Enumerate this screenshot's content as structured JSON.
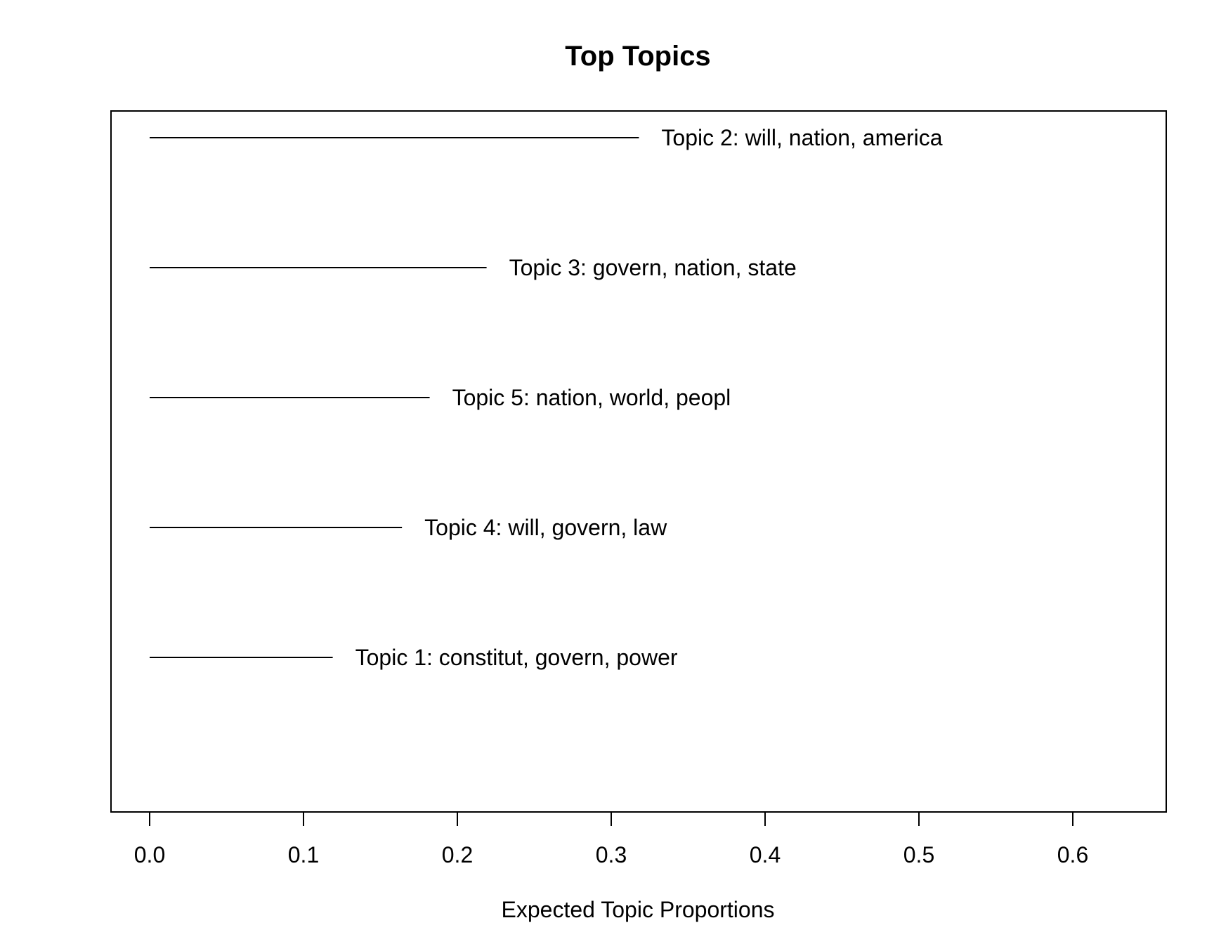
{
  "chart_data": {
    "type": "bar",
    "title": "Top Topics",
    "xlabel": "Expected Topic Proportions",
    "ylabel": "",
    "xlim": [
      0,
      0.66
    ],
    "xticks": [
      "0.0",
      "0.1",
      "0.2",
      "0.3",
      "0.4",
      "0.5",
      "0.6"
    ],
    "orientation": "horizontal",
    "grid": false,
    "legend": "none",
    "categories": [
      "Topic 2: will, nation, america",
      "Topic 3: govern, nation, state",
      "Topic 5: nation, world, peopl",
      "Topic 4: will, govern, law",
      "Topic 1: constitut, govern, power"
    ],
    "values": [
      0.318,
      0.219,
      0.182,
      0.164,
      0.119
    ]
  }
}
